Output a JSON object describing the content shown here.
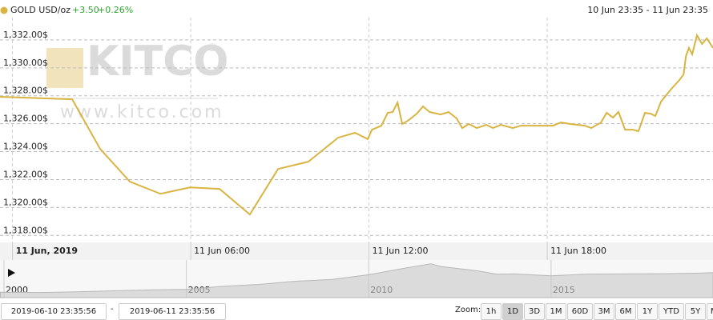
{
  "watermark": {
    "brand": "KITCO",
    "registered": "®",
    "url": "www.kitco.com"
  },
  "header": {
    "change": "+3.50",
    "change_percent": "+0.26%"
  },
  "chart_data": [
    {
      "type": "line",
      "subtitle": "10 Jun 23:35 - 11 Jun 23:35",
      "x": [
        -0.42,
        2.01,
        2.95,
        3.95,
        4.98,
        5.97,
        6.97,
        7.99,
        8.94,
        9.96,
        10.96,
        11.53,
        11.96,
        12.1,
        12.42,
        12.63,
        12.8,
        12.96,
        13.12,
        13.34,
        13.61,
        13.82,
        14.04,
        14.41,
        14.68,
        14.95,
        15.14,
        15.36,
        15.63,
        15.95,
        16.17,
        16.44,
        16.84,
        17.11,
        17.65,
        18.19,
        18.46,
        18.78,
        19.27,
        19.48,
        19.81,
        20.0,
        20.21,
        20.4,
        20.62,
        20.89,
        21.07,
        21.29,
        21.48,
        21.64,
        21.83,
        22.18,
        22.45,
        22.59,
        22.67,
        22.77,
        22.88,
        23.04,
        23.21,
        23.37,
        23.58
      ],
      "series": [
        {
          "name": "GOLD USD/oz",
          "color": "#d9b441",
          "values": [
            1327.93,
            1327.75,
            1324.2,
            1321.85,
            1320.98,
            1321.44,
            1321.33,
            1319.5,
            1322.76,
            1323.28,
            1325.0,
            1325.35,
            1324.9,
            1325.57,
            1325.86,
            1326.78,
            1326.84,
            1327.52,
            1325.98,
            1326.26,
            1326.72,
            1327.24,
            1326.84,
            1326.66,
            1326.84,
            1326.38,
            1325.69,
            1325.98,
            1325.69,
            1325.92,
            1325.69,
            1325.92,
            1325.69,
            1325.86,
            1325.86,
            1325.86,
            1326.09,
            1325.98,
            1325.86,
            1325.69,
            1326.09,
            1326.78,
            1326.44,
            1326.84,
            1325.57,
            1325.57,
            1325.46,
            1326.78,
            1326.72,
            1326.55,
            1327.58,
            1328.5,
            1329.13,
            1329.53,
            1330.85,
            1331.43,
            1330.97,
            1332.34,
            1331.71,
            1332.11,
            1331.43
          ]
        }
      ],
      "xlim": [
        -0.42,
        23.58
      ],
      "xticks": [
        {
          "value": 0,
          "label": "11 Jun, 2019"
        },
        {
          "value": 6,
          "label": "11 Jun 06:00"
        },
        {
          "value": 12,
          "label": "11 Jun 12:00"
        },
        {
          "value": 18,
          "label": "11 Jun 18:00"
        }
      ],
      "ylim": [
        1317.5,
        1333.6
      ],
      "yticks": [
        {
          "value": 1318,
          "label": "1,318.00$"
        },
        {
          "value": 1320,
          "label": "1,320.00$"
        },
        {
          "value": 1322,
          "label": "1,322.00$"
        },
        {
          "value": 1324,
          "label": "1,324.00$"
        },
        {
          "value": 1326,
          "label": "1,326.00$"
        },
        {
          "value": 1328,
          "label": "1,328.00$"
        },
        {
          "value": 1330,
          "label": "1,330.00$"
        },
        {
          "value": 1332,
          "label": "1,332.00$"
        }
      ],
      "grid": true
    },
    {
      "type": "area",
      "x": [
        1999.9,
        2001,
        2002,
        2003,
        2004,
        2005,
        2006,
        2007,
        2008,
        2009,
        2010,
        2011,
        2011.7,
        2012,
        2013,
        2013.5,
        2014,
        2015,
        2016,
        2017,
        2018,
        2019,
        2019.44
      ],
      "series": [
        {
          "color": "#c8c8c8",
          "values": [
            285,
            270,
            310,
            360,
            410,
            440,
            600,
            700,
            870,
            970,
            1220,
            1570,
            1800,
            1650,
            1420,
            1250,
            1260,
            1160,
            1250,
            1260,
            1270,
            1300,
            1330
          ]
        }
      ],
      "xlim": [
        1999.89,
        2019.44
      ],
      "xticks": [
        2000,
        2005,
        2010,
        2015
      ],
      "ylim": [
        0,
        2000
      ]
    }
  ],
  "range_selector": {
    "from": "2019-06-10 23:35:56",
    "separator": "-",
    "to": "2019-06-11 23:35:56",
    "zoom_label": "Zoom:",
    "buttons": [
      "1h",
      "1D",
      "3D",
      "1M",
      "60D",
      "3M",
      "6M",
      "1Y",
      "YTD",
      "5Y",
      "MAX"
    ],
    "selected": "1D"
  }
}
